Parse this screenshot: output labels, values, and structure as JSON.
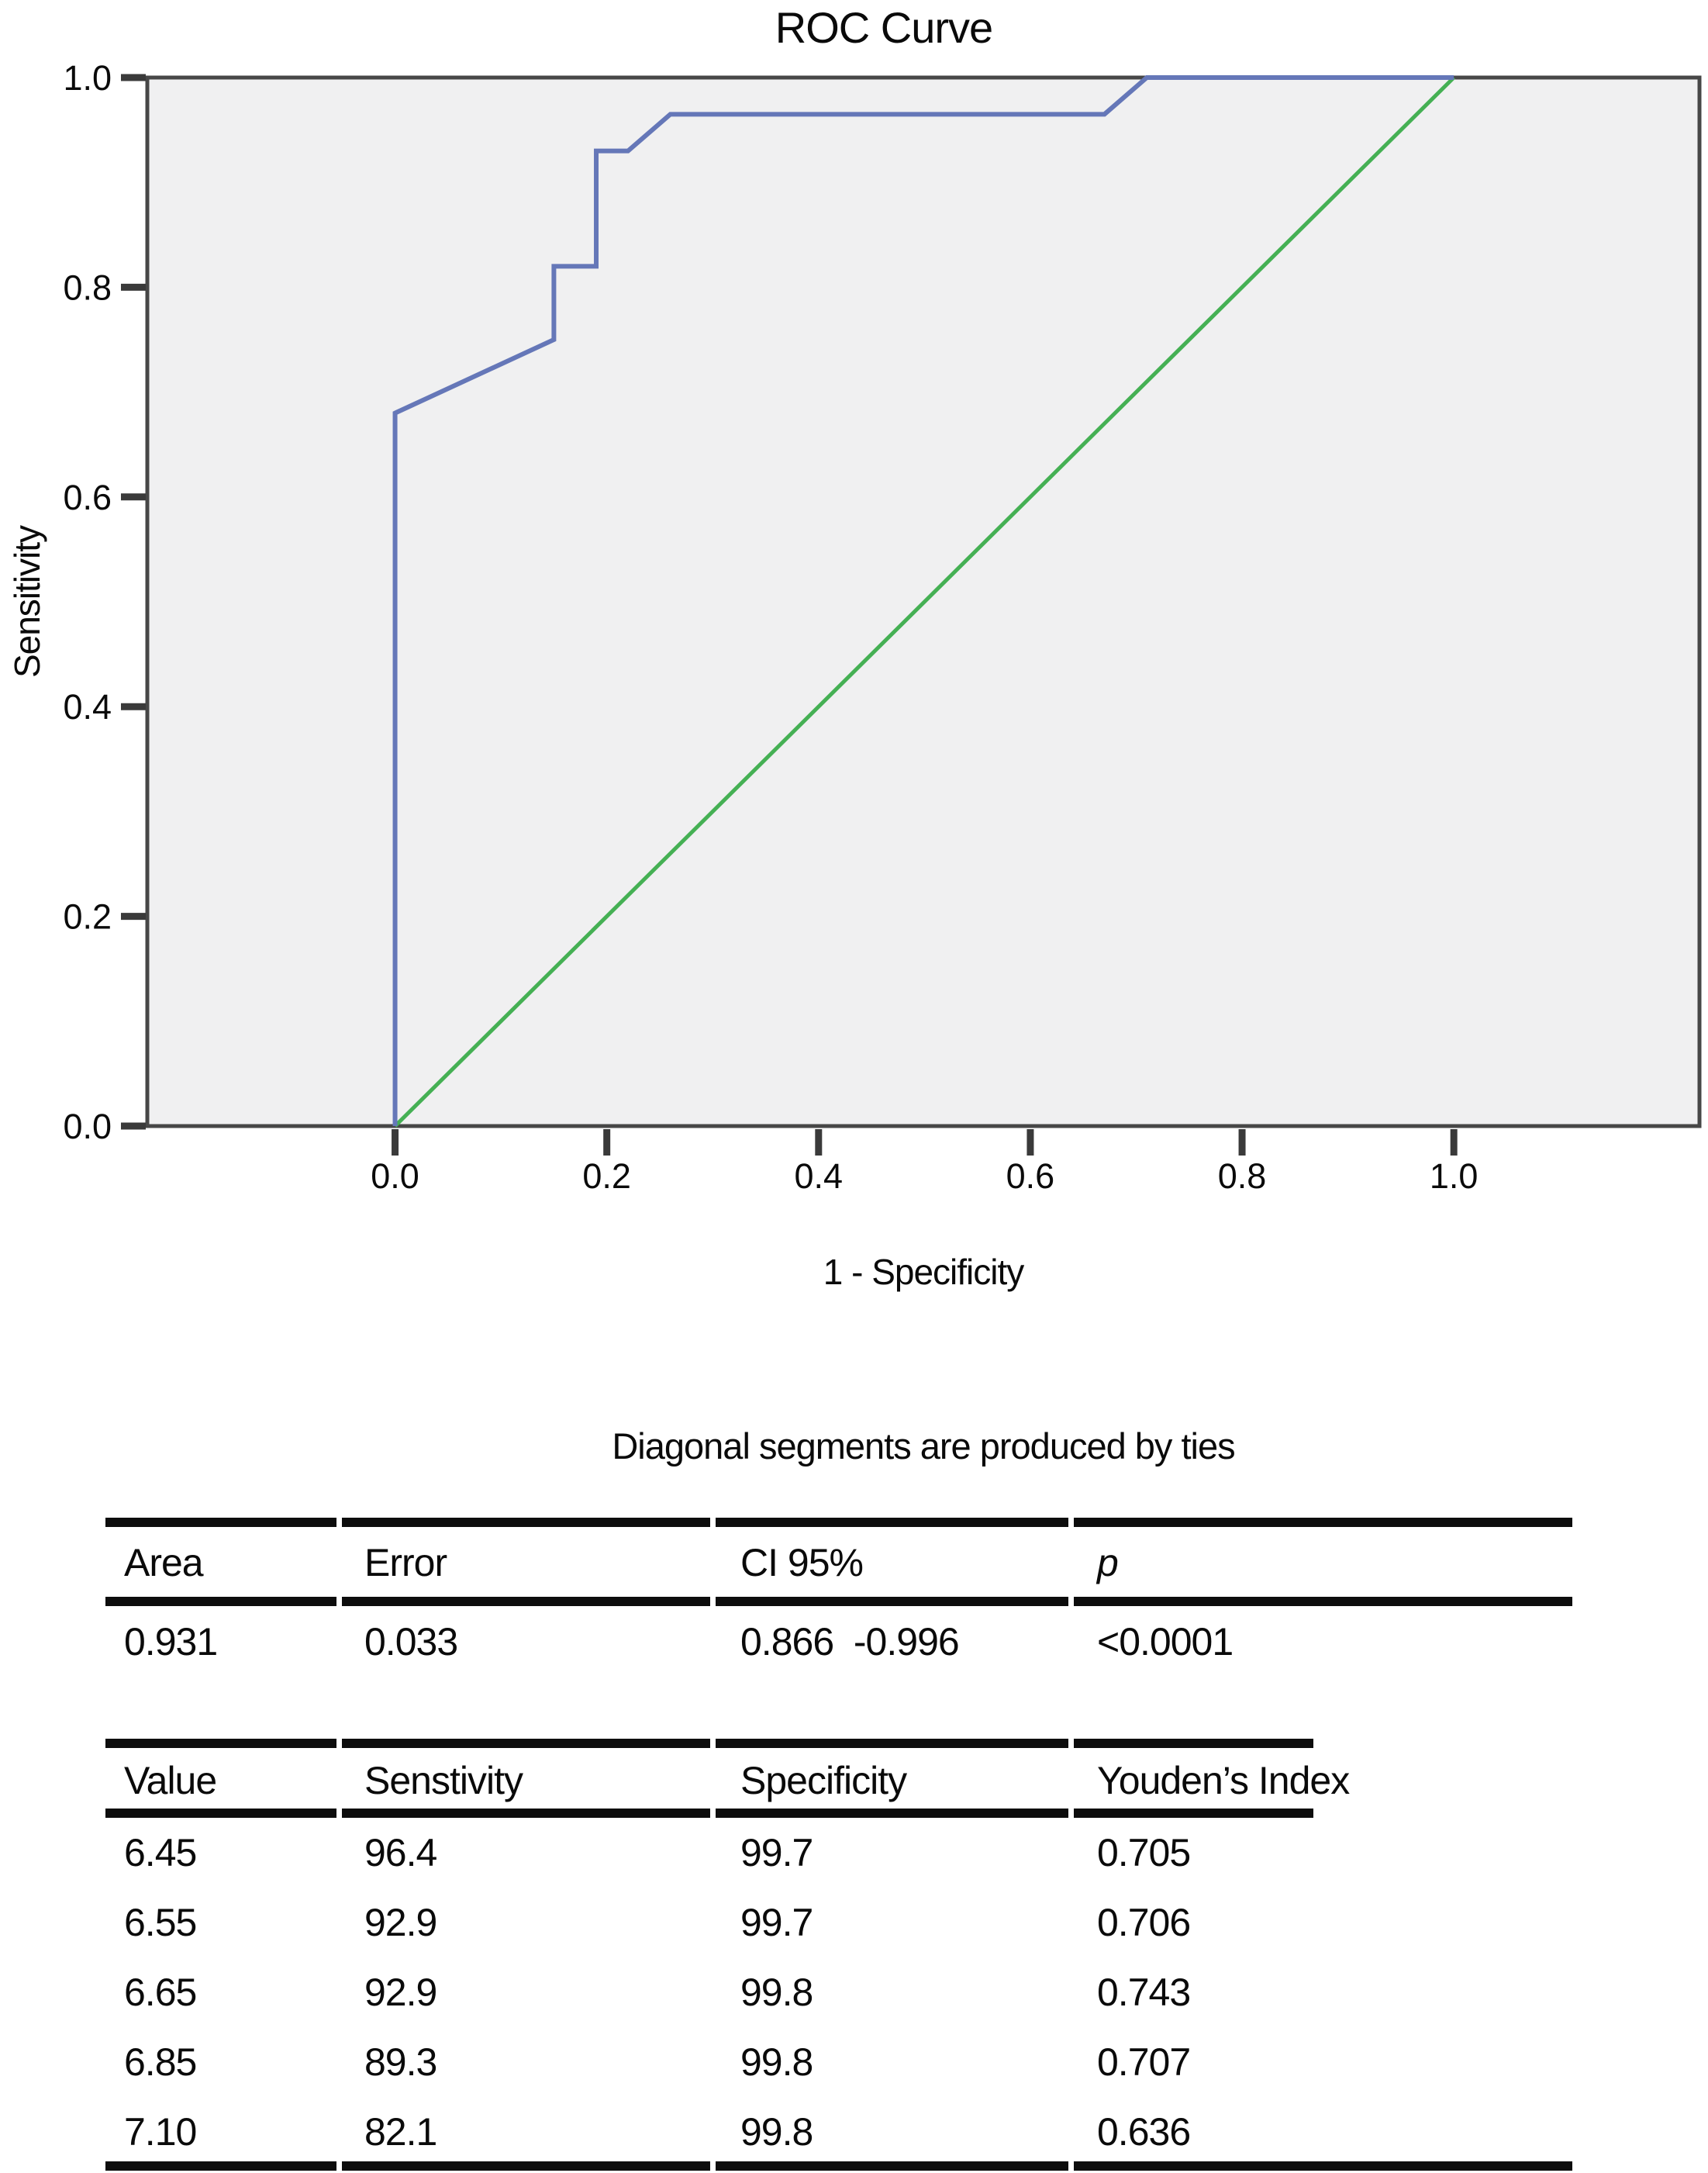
{
  "chart_data": {
    "type": "line",
    "title": "ROC Curve",
    "xlabel": "1 - Specificity",
    "ylabel": "Sensitivity",
    "caption": "Diagonal segments are produced by ties",
    "xlim": [
      -0.234,
      1.232
    ],
    "ylim": [
      0,
      1
    ],
    "grid": false,
    "legend": "none",
    "plot_background": "#f0f0f1",
    "frame_color": "#474747",
    "x_ticks": {
      "values": [
        0,
        0.2,
        0.4,
        0.6,
        0.8,
        1.0
      ],
      "labels": [
        "0.0",
        "0.2",
        "0.4",
        "0.6",
        "0.8",
        "1.0"
      ]
    },
    "y_ticks": {
      "values": [
        0,
        0.2,
        0.4,
        0.6,
        0.8,
        1.0
      ],
      "labels": [
        "0.0",
        "0.2",
        "0.4",
        "0.6",
        "0.8",
        "1.0"
      ]
    },
    "series": [
      {
        "name": "reference-diagonal",
        "color": "#45b054",
        "stroke_width": 5,
        "points": [
          [
            0,
            0
          ],
          [
            1,
            1
          ]
        ]
      },
      {
        "name": "roc-curve",
        "color": "#6577b8",
        "stroke_width": 6,
        "points": [
          [
            0,
            0
          ],
          [
            0,
            0.68
          ],
          [
            0.15,
            0.75
          ],
          [
            0.15,
            0.82
          ],
          [
            0.19,
            0.82
          ],
          [
            0.19,
            0.93
          ],
          [
            0.22,
            0.93
          ],
          [
            0.26,
            0.965
          ],
          [
            0.67,
            0.965
          ],
          [
            0.71,
            1.0
          ],
          [
            1.0,
            1.0
          ]
        ]
      }
    ]
  },
  "tables": {
    "auc": {
      "headers": [
        "Area",
        "Error",
        "CI 95%",
        "p"
      ],
      "row": [
        "0.931",
        "0.033",
        "0.866  -0.996",
        "<0.0001"
      ]
    },
    "thresholds": {
      "headers": [
        "Value",
        "Senstivity",
        "Specificity",
        "Youden’s Index"
      ],
      "rows": [
        [
          "6.45",
          "96.4",
          "99.7",
          "0.705"
        ],
        [
          "6.55",
          "92.9",
          "99.7",
          "0.706"
        ],
        [
          "6.65",
          "92.9",
          "99.8",
          "0.743"
        ],
        [
          "6.85",
          "89.3",
          "99.8",
          "0.707"
        ],
        [
          "7.10",
          "82.1",
          "99.8",
          "0.636"
        ]
      ]
    }
  }
}
